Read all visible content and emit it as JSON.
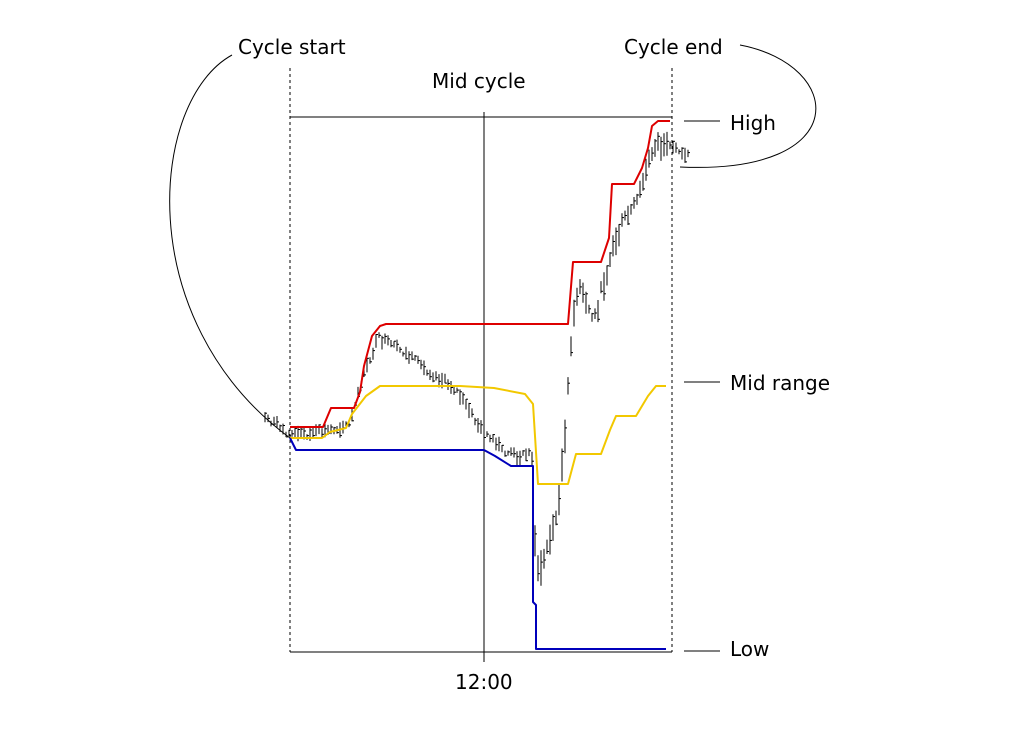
{
  "labels": {
    "cycle_start": "Cycle start",
    "cycle_end": "Cycle end",
    "mid_cycle": "Mid cycle",
    "high": "High",
    "mid_range": "Mid range",
    "low": "Low",
    "time_tick": "12:00"
  },
  "colors": {
    "high_line": "#dd0000",
    "mid_line": "#f2c800",
    "low_line": "#0000bb",
    "bars": "#000000",
    "guides": "#000000"
  },
  "chart_data": {
    "type": "line",
    "x_tick_labels": [
      "12:00"
    ],
    "series": [
      {
        "name": "High"
      },
      {
        "name": "Mid range"
      },
      {
        "name": "Low"
      }
    ]
  }
}
